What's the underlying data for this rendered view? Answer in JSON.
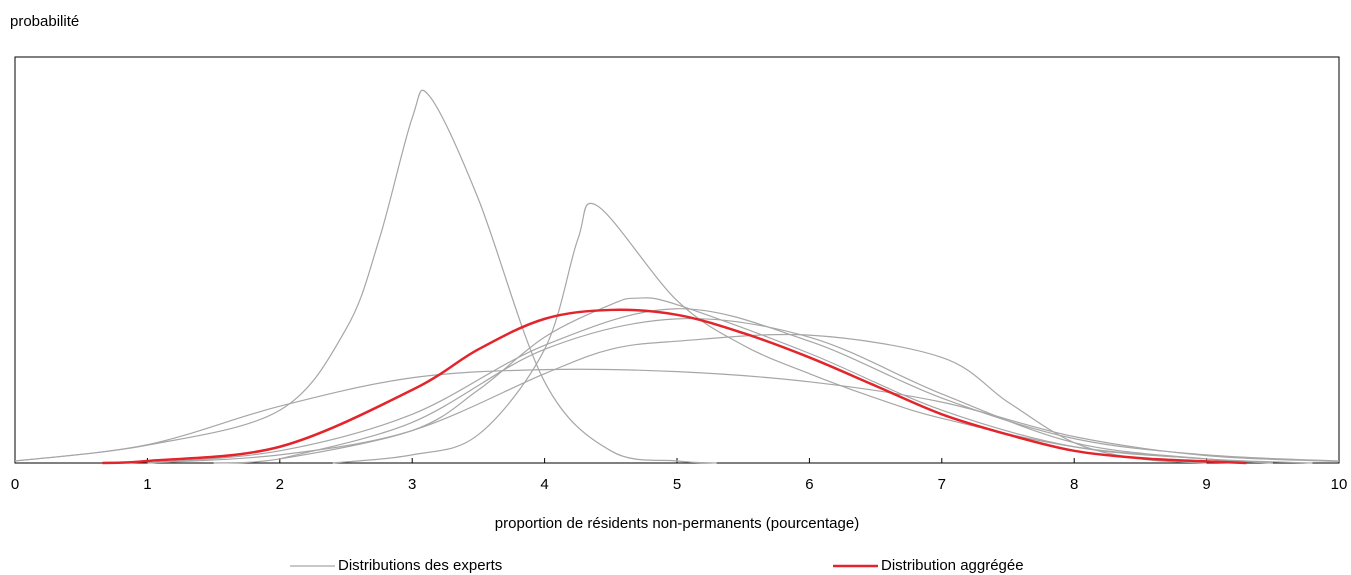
{
  "chart_data": {
    "type": "line",
    "ylabel": "probabilité",
    "xlabel": "proportion de résidents non-permanents (pourcentage)",
    "xlim": [
      0,
      10
    ],
    "xticks": [
      0,
      1,
      2,
      3,
      4,
      5,
      6,
      7,
      8,
      9,
      10
    ],
    "ylim": [
      0,
      1
    ],
    "series": [
      {
        "name": "Distributions des experts",
        "color": "#a6a6a6",
        "width": 1.2,
        "curves": [
          {
            "x": [
              0,
              1,
              2,
              2.5,
              2.75,
              3,
              3.13,
              3.5,
              4,
              4.5,
              5,
              5.3
            ],
            "values": [
              0.005,
              0.044,
              0.13,
              0.33,
              0.55,
              0.85,
              0.904,
              0.65,
              0.2,
              0.03,
              0.005,
              0
            ]
          },
          {
            "x": [
              2.4,
              3,
              3.5,
              4,
              4.25,
              4.4,
              5,
              5.5,
              6,
              6.5,
              7,
              8,
              9,
              9.8
            ],
            "values": [
              0,
              0.02,
              0.07,
              0.28,
              0.55,
              0.633,
              0.4,
              0.29,
              0.22,
              0.16,
              0.11,
              0.04,
              0.01,
              0
            ]
          },
          {
            "x": [
              1,
              2,
              3,
              4,
              4.5,
              5,
              6,
              7,
              7.5,
              8,
              8.5,
              9
            ],
            "values": [
              0,
              0.02,
              0.08,
              0.22,
              0.28,
              0.3,
              0.315,
              0.26,
              0.15,
              0.05,
              0.01,
              0
            ]
          },
          {
            "x": [
              0,
              1,
              2,
              3,
              4,
              5,
              6,
              7,
              8,
              9,
              10
            ],
            "values": [
              0.005,
              0.045,
              0.14,
              0.21,
              0.23,
              0.225,
              0.2,
              0.15,
              0.065,
              0.018,
              0.004
            ]
          },
          {
            "x": [
              1.5,
              2,
              3,
              3.5,
              4,
              4.5,
              4.7,
              5,
              6,
              7,
              8,
              9,
              9.5
            ],
            "values": [
              0,
              0.01,
              0.08,
              0.18,
              0.31,
              0.39,
              0.406,
              0.39,
              0.27,
              0.13,
              0.04,
              0.01,
              0
            ]
          },
          {
            "x": [
              1,
              2,
              3,
              4,
              5,
              6,
              7,
              8,
              9,
              10
            ],
            "values": [
              0,
              0.03,
              0.12,
              0.29,
              0.38,
              0.3,
              0.16,
              0.06,
              0.02,
              0.005
            ]
          },
          {
            "x": [
              2,
              3,
              4,
              5,
              6,
              7,
              8,
              9,
              9.5
            ],
            "values": [
              0.01,
              0.1,
              0.28,
              0.355,
              0.31,
              0.17,
              0.05,
              0.01,
              0
            ]
          }
        ]
      },
      {
        "name": "Distribution aggrégée",
        "color": "#e3242b",
        "width": 2.5,
        "curves": [
          {
            "x": [
              0.66,
              1,
              2,
              3,
              3.5,
              4,
              4.5,
              5,
              5.5,
              6,
              6.5,
              7,
              7.5,
              8,
              8.5,
              9,
              9.3
            ],
            "values": [
              0,
              0.005,
              0.04,
              0.18,
              0.28,
              0.355,
              0.377,
              0.365,
              0.32,
              0.26,
              0.19,
              0.12,
              0.07,
              0.03,
              0.012,
              0.004,
              0
            ]
          }
        ]
      }
    ]
  }
}
